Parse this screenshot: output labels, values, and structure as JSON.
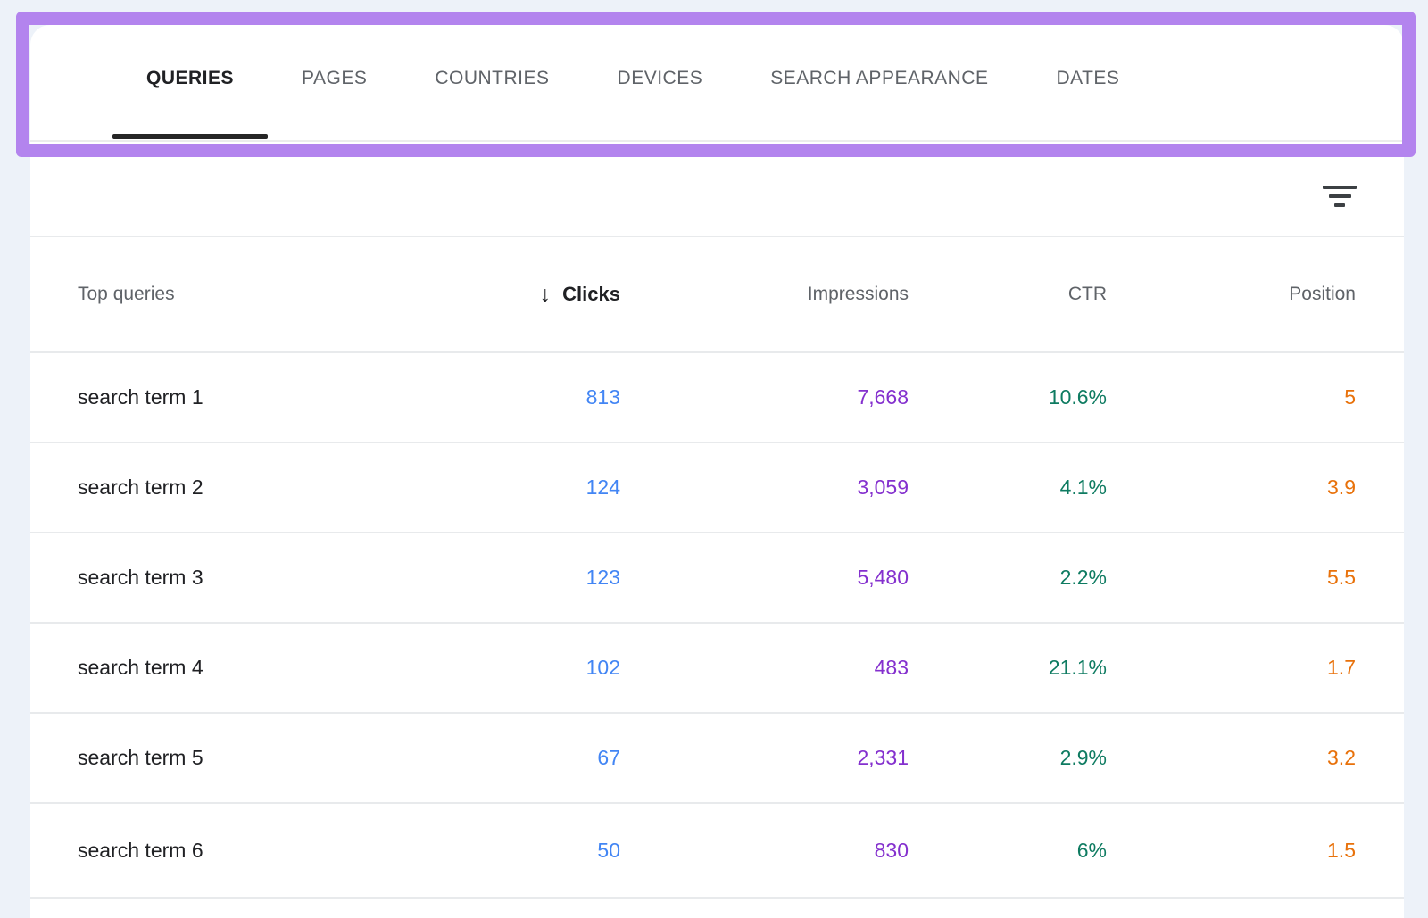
{
  "theme": {
    "bg": "#edf2f9",
    "card": "#ffffff",
    "highlight": "#b384ee",
    "divider": "#e8eaec",
    "tab-line": "#ececec",
    "text-primary": "#202124",
    "text-secondary": "#5f6368",
    "icon": "#3c4043",
    "clicks": "#4285f4",
    "impressions": "#8430ce",
    "ctr": "#0e7b61",
    "position": "#e8710a",
    "underline": "#262626"
  },
  "tabs": [
    {
      "label": "QUERIES",
      "active": true
    },
    {
      "label": "PAGES",
      "active": false
    },
    {
      "label": "COUNTRIES",
      "active": false
    },
    {
      "label": "DEVICES",
      "active": false
    },
    {
      "label": "SEARCH APPEARANCE",
      "active": false
    },
    {
      "label": "DATES",
      "active": false
    }
  ],
  "toolbar": {
    "filter_icon": "filter-list-icon"
  },
  "table": {
    "sort": {
      "column": "Clicks",
      "direction": "descending",
      "icon": "arrow-down-icon"
    },
    "columns": [
      {
        "label": "Top queries",
        "align": "left"
      },
      {
        "label": "Clicks",
        "align": "right",
        "sorted": true
      },
      {
        "label": "Impressions",
        "align": "right"
      },
      {
        "label": "CTR",
        "align": "right"
      },
      {
        "label": "Position",
        "align": "right"
      }
    ],
    "rows": [
      {
        "query": "search term 1",
        "clicks": "813",
        "impressions": "7,668",
        "ctr": "10.6%",
        "position": "5"
      },
      {
        "query": "search term 2",
        "clicks": "124",
        "impressions": "3,059",
        "ctr": "4.1%",
        "position": "3.9"
      },
      {
        "query": "search term 3",
        "clicks": "123",
        "impressions": "5,480",
        "ctr": "2.2%",
        "position": "5.5"
      },
      {
        "query": "search term 4",
        "clicks": "102",
        "impressions": "483",
        "ctr": "21.1%",
        "position": "1.7"
      },
      {
        "query": "search term 5",
        "clicks": "67",
        "impressions": "2,331",
        "ctr": "2.9%",
        "position": "3.2"
      },
      {
        "query": "search term 6",
        "clicks": "50",
        "impressions": "830",
        "ctr": "6%",
        "position": "1.5"
      }
    ]
  },
  "annotation": {
    "type": "highlight-box",
    "color": "#b384ee"
  }
}
